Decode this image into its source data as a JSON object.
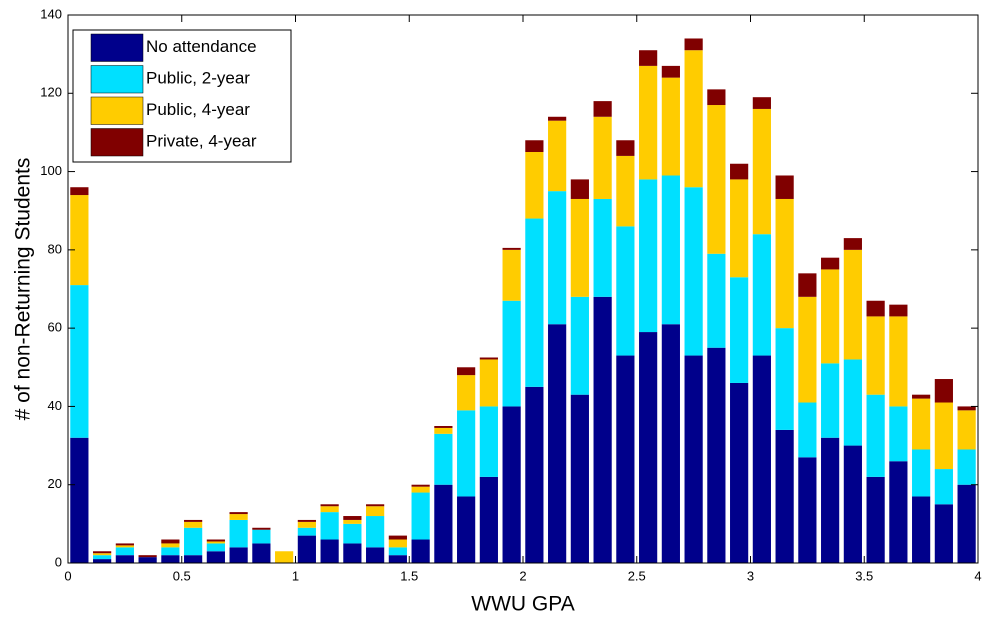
{
  "chart_data": {
    "type": "bar",
    "stacked": true,
    "xlabel": "WWU GPA",
    "ylabel": "# of non-Returning Students",
    "x": [
      0.05,
      0.15,
      0.25,
      0.35,
      0.45,
      0.55,
      0.65,
      0.75,
      0.85,
      0.95,
      1.05,
      1.15,
      1.25,
      1.35,
      1.45,
      1.55,
      1.65,
      1.75,
      1.85,
      1.95,
      2.05,
      2.15,
      2.25,
      2.35,
      2.45,
      2.55,
      2.65,
      2.75,
      2.85,
      2.95,
      3.05,
      3.15,
      3.25,
      3.35,
      3.45,
      3.55,
      3.65,
      3.75,
      3.85,
      3.95
    ],
    "series": [
      {
        "name": "No attendance",
        "color": "#00008b",
        "values": [
          32,
          1,
          2,
          1.5,
          2,
          2,
          3,
          4,
          5,
          0,
          7,
          6,
          5,
          4,
          2,
          6,
          20,
          17,
          22,
          40,
          45,
          61,
          43,
          68,
          53,
          59,
          61,
          53,
          55,
          46,
          53,
          34,
          27,
          32,
          30,
          22,
          26,
          17,
          15,
          20
        ]
      },
      {
        "name": "Public, 2-year",
        "color": "#00e0ff",
        "values": [
          39,
          1,
          2,
          0,
          2,
          7,
          2,
          7,
          3.5,
          0,
          2,
          7,
          5,
          8,
          2,
          12,
          13,
          22,
          18,
          27,
          43,
          34,
          25,
          25,
          33,
          39,
          38,
          43,
          24,
          27,
          31,
          26,
          14,
          19,
          22,
          21,
          14,
          12,
          9,
          9
        ]
      },
      {
        "name": "Public, 4-year",
        "color": "#ffcc00",
        "values": [
          23,
          0.5,
          0.5,
          0,
          1,
          1.5,
          0.5,
          1.5,
          0,
          3,
          1.5,
          1.5,
          1,
          2.5,
          2,
          1.5,
          1.5,
          9,
          12,
          13,
          17,
          18,
          25,
          21,
          18,
          29,
          25,
          35,
          38,
          25,
          32,
          33,
          27,
          24,
          28,
          20,
          23,
          13,
          17,
          10
        ]
      },
      {
        "name": "Private, 4-year",
        "color": "#800000",
        "values": [
          2,
          0.5,
          0.5,
          0.5,
          1,
          0.5,
          0.5,
          0.5,
          0.5,
          0,
          0.5,
          0.5,
          1,
          0.5,
          1,
          0.5,
          0.5,
          2,
          0.5,
          0.5,
          3,
          1,
          5,
          4,
          4,
          4,
          3,
          3,
          4,
          4,
          3,
          6,
          6,
          3,
          3,
          4,
          3,
          1,
          6,
          1
        ]
      }
    ],
    "xlim": [
      0,
      4
    ],
    "xticks": [
      0,
      0.5,
      1,
      1.5,
      2,
      2.5,
      3,
      3.5,
      4
    ],
    "ylim": [
      0,
      140
    ],
    "yticks": [
      0,
      20,
      40,
      60,
      80,
      100,
      120,
      140
    ],
    "legend": "upper left"
  }
}
